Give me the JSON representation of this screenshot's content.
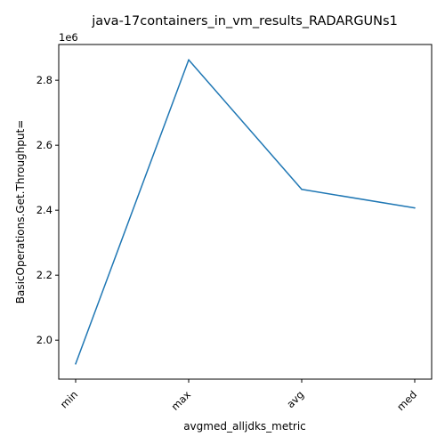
{
  "chart_data": {
    "type": "line",
    "title": "java-17containers_in_vm_results_RADARGUNs1",
    "xlabel": "avgmed_alljdks_metric",
    "ylabel": "BasicOperations.Get.Throughput=",
    "y_offset_label": "1e6",
    "categories": [
      "min",
      "max",
      "avg",
      "med"
    ],
    "series": [
      {
        "values": [
          1927000,
          2863000,
          2464000,
          2407000
        ],
        "color": "#1f77b4"
      }
    ],
    "yticks": [
      2000000,
      2200000,
      2400000,
      2600000,
      2800000
    ],
    "ytick_labels": [
      "2.0",
      "2.2",
      "2.4",
      "2.6",
      "2.8"
    ],
    "ylim": [
      1880000,
      2910000
    ],
    "grid": false
  }
}
